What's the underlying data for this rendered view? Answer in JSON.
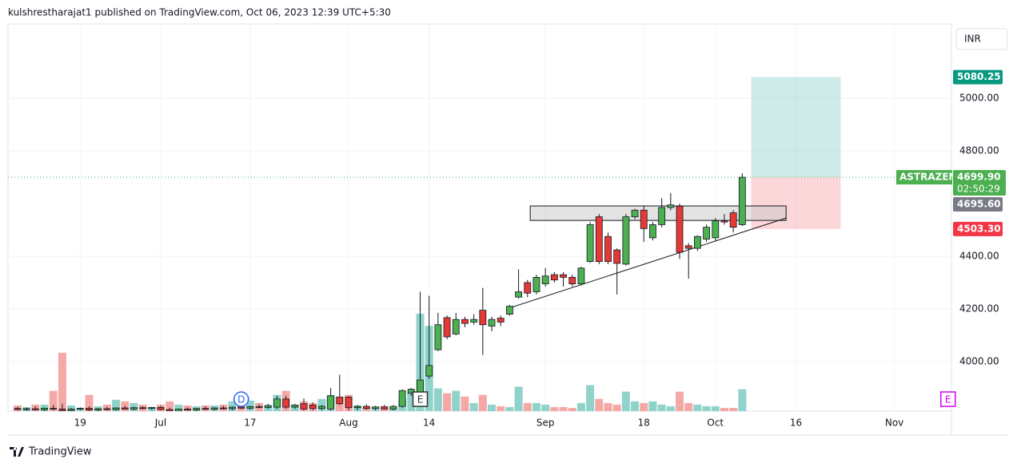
{
  "chart_data": {
    "type": "candlestick",
    "header": "kulshrestharajat1 published on TradingView.com, Oct 06, 2023 12:39 UTC+5:30",
    "footer": "TradingView",
    "currency": "INR",
    "symbol": "ASTRAZEN",
    "countdown": "02:50:29",
    "up_color": "#4caf50",
    "down_color": "#e53935",
    "volume_up_color": "#8fd3cb",
    "volume_down_color": "#f5a9a6",
    "grid": true,
    "ylim": [
      3812,
      5282
    ],
    "yticks": [
      {
        "value": 4000,
        "label": "4000.00"
      },
      {
        "value": 4200,
        "label": "4200.00"
      },
      {
        "value": 4400,
        "label": "4400.00"
      },
      {
        "value": 4800,
        "label": "4800.00"
      },
      {
        "value": 5000,
        "label": "5000.00"
      }
    ],
    "xticks": [
      {
        "value": 7,
        "label": "19"
      },
      {
        "value": 16,
        "label": "Jul"
      },
      {
        "value": 26,
        "label": "17"
      },
      {
        "value": 37,
        "label": "Aug"
      },
      {
        "value": 46,
        "label": "14"
      },
      {
        "value": 59,
        "label": "Sep"
      },
      {
        "value": 70,
        "label": "18"
      },
      {
        "value": 78,
        "label": "Oct"
      },
      {
        "value": 87,
        "label": "16"
      },
      {
        "value": 98,
        "label": "Nov"
      }
    ],
    "open": [
      3822,
      3818,
      3821,
      3817,
      3823,
      3820,
      3814,
      3820,
      3823,
      3816,
      3821,
      3818,
      3824,
      3820,
      3825,
      3822,
      3826,
      3818,
      3812,
      3820,
      3816,
      3822,
      3819,
      3824,
      3821,
      3827,
      3823,
      3829,
      3826,
      3827,
      3858,
      3827,
      3840,
      3835,
      3822,
      3820,
      3865,
      3865,
      3825,
      3830,
      3822,
      3828,
      3820,
      3830,
      3880,
      3870,
      3945,
      4045,
      4167,
      4105,
      4160,
      4150,
      4195,
      4135,
      4165,
      4180,
      4245,
      4300,
      4265,
      4295,
      4330,
      4330,
      4320,
      4295,
      4380,
      4550,
      4475,
      4424,
      4370,
      4550,
      4575,
      4470,
      4520,
      4585,
      4590,
      4440,
      4430,
      4465,
      4470,
      4535,
      4565,
      4520
    ],
    "high": [
      3828,
      3825,
      3830,
      3826,
      3835,
      3840,
      3824,
      3826,
      3830,
      3824,
      3828,
      3826,
      3832,
      3828,
      3830,
      3828,
      3832,
      3825,
      3822,
      3826,
      3824,
      3830,
      3826,
      3832,
      3830,
      3835,
      3832,
      3838,
      3840,
      3870,
      3870,
      3840,
      3860,
      3845,
      3835,
      3900,
      3950,
      3870,
      3835,
      3838,
      3832,
      3836,
      3835,
      3895,
      3900,
      4265,
      4250,
      4185,
      4175,
      4185,
      4170,
      4180,
      4280,
      4170,
      4175,
      4215,
      4350,
      4310,
      4330,
      4355,
      4340,
      4340,
      4330,
      4360,
      4530,
      4560,
      4490,
      4430,
      4560,
      4580,
      4590,
      4530,
      4620,
      4640,
      4600,
      4450,
      4480,
      4520,
      4545,
      4560,
      4575,
      4715
    ],
    "low": [
      3815,
      3814,
      3816,
      3813,
      3815,
      3812,
      3810,
      3815,
      3812,
      3812,
      3815,
      3814,
      3818,
      3815,
      3818,
      3816,
      3815,
      3810,
      3808,
      3814,
      3812,
      3816,
      3815,
      3818,
      3815,
      3820,
      3818,
      3822,
      3820,
      3820,
      3820,
      3820,
      3815,
      3815,
      3815,
      3815,
      3835,
      3815,
      3815,
      3818,
      3815,
      3818,
      3815,
      3825,
      3870,
      3860,
      3935,
      4040,
      4085,
      4100,
      4130,
      4140,
      4025,
      4115,
      4135,
      4175,
      4240,
      4245,
      4255,
      4285,
      4300,
      4285,
      4285,
      4290,
      4375,
      4370,
      4370,
      4255,
      4365,
      4540,
      4455,
      4460,
      4510,
      4575,
      4390,
      4315,
      4420,
      4455,
      4460,
      4520,
      4490,
      4515
    ],
    "close": [
      3818,
      3821,
      3817,
      3823,
      3820,
      3814,
      3820,
      3823,
      3816,
      3821,
      3818,
      3824,
      3820,
      3825,
      3822,
      3826,
      3818,
      3812,
      3820,
      3816,
      3822,
      3819,
      3824,
      3821,
      3827,
      3823,
      3829,
      3826,
      3832,
      3858,
      3827,
      3835,
      3820,
      3822,
      3830,
      3870,
      3840,
      3825,
      3830,
      3822,
      3828,
      3820,
      3830,
      3890,
      3895,
      3930,
      3985,
      4140,
      4094,
      4160,
      4145,
      4160,
      4140,
      4160,
      4150,
      4210,
      4265,
      4260,
      4320,
      4325,
      4310,
      4320,
      4295,
      4355,
      4520,
      4380,
      4380,
      4373,
      4550,
      4575,
      4505,
      4520,
      4585,
      4595,
      4415,
      4430,
      4475,
      4510,
      4535,
      4530,
      4510,
      4699.9
    ],
    "volume": [
      7,
      5,
      8,
      8,
      25,
      72,
      7,
      3,
      20,
      6,
      8,
      14,
      12,
      10,
      8,
      5,
      8,
      12,
      8,
      7,
      6,
      7,
      7,
      8,
      12,
      10,
      13,
      10,
      8,
      20,
      25,
      8,
      12,
      10,
      15,
      20,
      18,
      20,
      7,
      4,
      5,
      6,
      5,
      15,
      25,
      120,
      105,
      28,
      22,
      25,
      18,
      10,
      20,
      8,
      6,
      5,
      30,
      10,
      10,
      8,
      5,
      5,
      4,
      10,
      32,
      15,
      10,
      8,
      24,
      12,
      10,
      12,
      8,
      6,
      24,
      10,
      8,
      6,
      6,
      4,
      4,
      27
    ],
    "last_price": {
      "value": 4699.9,
      "label": "4699.90"
    },
    "prev_close": {
      "value": 4695.6,
      "label": "4695.60"
    },
    "position": {
      "start": 82,
      "end": 92,
      "target": {
        "value": 5080.25,
        "label": "5080.25"
      },
      "stop": {
        "value": 4503.3,
        "label": "4503.30"
      }
    },
    "zone": {
      "start": 57.3,
      "end": 85.9,
      "top": 4591,
      "bottom": 4536
    },
    "trendline": {
      "x": [
        55.2,
        85.9
      ],
      "y": [
        4206,
        4545
      ]
    },
    "markers": [
      {
        "slot": 25,
        "label": "D",
        "color": "#2962ff"
      },
      {
        "slot": 45,
        "label": "E",
        "color": "#333333"
      },
      {
        "slot": 104,
        "label": "E",
        "color": "#d500f9"
      }
    ]
  }
}
